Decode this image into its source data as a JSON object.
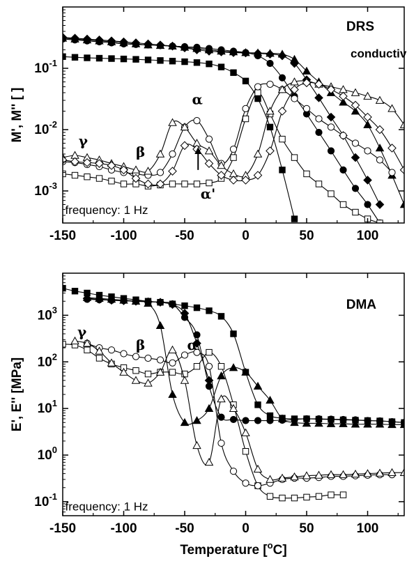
{
  "chart_data": [
    {
      "type": "line",
      "title": "DRS",
      "xlabel": "",
      "ylabel": "M', M'' [ ]",
      "xlim": [
        -150,
        130
      ],
      "ylim": [
        0.0003,
        1
      ],
      "yscale": "log",
      "x_ticks": [
        "-150",
        "-100",
        "-50",
        "0",
        "50",
        "100"
      ],
      "x_tick_values": [
        -150,
        -100,
        -50,
        0,
        50,
        100
      ],
      "y_ticks": [
        {
          "base": "10",
          "exp": "-3",
          "value": 0.001
        },
        {
          "base": "10",
          "exp": "-2",
          "value": 0.01
        },
        {
          "base": "10",
          "exp": "-1",
          "value": 0.1
        }
      ],
      "annotations": [
        {
          "text": "frequency: 1 Hz",
          "x": -148,
          "y": 0.00042
        },
        {
          "text": "conductivity",
          "x": 86,
          "y": 0.15
        },
        {
          "text": "γ",
          "x": -137,
          "y": 0.0055
        },
        {
          "text": "β",
          "x": -90,
          "y": 0.0036
        },
        {
          "text": "α",
          "x": -44,
          "y": 0.026
        },
        {
          "text": "α'",
          "x": -37,
          "y": 0.00075
        }
      ],
      "arrow": {
        "from": [
          -39,
          0.0022
        ],
        "to": [
          -39,
          0.0052
        ]
      },
      "series": [
        {
          "marker": "filled-square",
          "x": [
            -150,
            -140,
            -130,
            -120,
            -110,
            -100,
            -90,
            -80,
            -70,
            -60,
            -50,
            -40,
            -30,
            -20,
            -10,
            0,
            10,
            20,
            30,
            40
          ],
          "y": [
            0.155,
            0.151,
            0.148,
            0.146,
            0.144,
            0.142,
            0.14,
            0.137,
            0.134,
            0.131,
            0.128,
            0.124,
            0.118,
            0.105,
            0.085,
            0.062,
            0.032,
            0.011,
            0.0022,
            0.00035
          ]
        },
        {
          "marker": "filled-circle",
          "x": [
            -150,
            -140,
            -130,
            -120,
            -110,
            -100,
            -90,
            -80,
            -70,
            -60,
            -50,
            -40,
            -30,
            -20,
            -10,
            0,
            10,
            20,
            30,
            40,
            50,
            60,
            70,
            80,
            90,
            100,
            110
          ],
          "y": [
            0.3,
            0.29,
            0.28,
            0.27,
            0.26,
            0.25,
            0.245,
            0.24,
            0.235,
            0.23,
            0.225,
            0.22,
            0.21,
            0.2,
            0.19,
            0.18,
            0.16,
            0.12,
            0.07,
            0.035,
            0.018,
            0.009,
            0.0045,
            0.0022,
            0.0011,
            0.0006,
            0.0003
          ]
        },
        {
          "marker": "filled-diamond",
          "x": [
            -150,
            -140,
            -130,
            -120,
            -110,
            -100,
            -90,
            -80,
            -70,
            -60,
            -50,
            -40,
            -30,
            -20,
            -10,
            0,
            10,
            20,
            30,
            40,
            50,
            60,
            70,
            80,
            90,
            100,
            110
          ],
          "y": [
            0.32,
            0.31,
            0.3,
            0.29,
            0.28,
            0.27,
            0.26,
            0.25,
            0.24,
            0.23,
            0.215,
            0.2,
            0.19,
            0.185,
            0.18,
            0.178,
            0.175,
            0.17,
            0.16,
            0.12,
            0.065,
            0.033,
            0.016,
            0.008,
            0.0035,
            0.0015,
            0.0006
          ]
        },
        {
          "marker": "filled-triangle",
          "x": [
            -150,
            -140,
            -130,
            -120,
            -110,
            -100,
            -90,
            -80,
            -70,
            -60,
            -50,
            -40,
            -30,
            -20,
            -10,
            0,
            10,
            20,
            30,
            40,
            50,
            60,
            70,
            80,
            90,
            100,
            110,
            120,
            130
          ],
          "y": [
            0.31,
            0.3,
            0.29,
            0.28,
            0.27,
            0.26,
            0.25,
            0.24,
            0.235,
            0.23,
            0.22,
            0.21,
            0.2,
            0.19,
            0.185,
            0.18,
            0.178,
            0.175,
            0.17,
            0.14,
            0.09,
            0.06,
            0.04,
            0.028,
            0.02,
            0.012,
            0.005,
            0.0018,
            0.0006
          ]
        },
        {
          "marker": "open-square",
          "x": [
            -150,
            -140,
            -130,
            -120,
            -110,
            -100,
            -90,
            -80,
            -70,
            -60,
            -50,
            -40,
            -30,
            -20,
            -10,
            0,
            10,
            20,
            30,
            40,
            50,
            60,
            70,
            80,
            90,
            100,
            110
          ],
          "y": [
            0.0019,
            0.0018,
            0.0017,
            0.0016,
            0.00145,
            0.0013,
            0.0013,
            0.0012,
            0.00125,
            0.0013,
            0.0013,
            0.0013,
            0.00135,
            0.0016,
            0.0035,
            0.015,
            0.04,
            0.018,
            0.007,
            0.0035,
            0.0019,
            0.0013,
            0.0009,
            0.0006,
            0.00045,
            0.00035,
            0.0003
          ]
        },
        {
          "marker": "open-circle",
          "x": [
            -150,
            -140,
            -130,
            -120,
            -110,
            -100,
            -90,
            -80,
            -70,
            -60,
            -50,
            -40,
            -30,
            -20,
            -10,
            0,
            10,
            20,
            30,
            40,
            50,
            60,
            70,
            80,
            90,
            100,
            110,
            120
          ],
          "y": [
            0.003,
            0.0029,
            0.0027,
            0.0025,
            0.0022,
            0.002,
            0.0019,
            0.0018,
            0.002,
            0.004,
            0.011,
            0.014,
            0.007,
            0.0028,
            0.0048,
            0.022,
            0.05,
            0.055,
            0.045,
            0.032,
            0.022,
            0.015,
            0.011,
            0.008,
            0.006,
            0.0045,
            0.0032,
            0.002
          ]
        },
        {
          "marker": "open-triangle",
          "x": [
            -150,
            -140,
            -130,
            -120,
            -110,
            -100,
            -90,
            -80,
            -70,
            -60,
            -50,
            -40,
            -30,
            -20,
            -10,
            0,
            10,
            20,
            30,
            40,
            50,
            60,
            70,
            80,
            90,
            100,
            110,
            120,
            130
          ],
          "y": [
            0.0035,
            0.0038,
            0.0035,
            0.0032,
            0.0028,
            0.0025,
            0.0022,
            0.0021,
            0.004,
            0.013,
            0.011,
            0.006,
            0.0045,
            0.0026,
            0.0019,
            0.0018,
            0.004,
            0.02,
            0.045,
            0.06,
            0.062,
            0.055,
            0.05,
            0.045,
            0.04,
            0.035,
            0.03,
            0.022,
            0.012
          ]
        },
        {
          "marker": "open-diamond",
          "x": [
            -150,
            -140,
            -130,
            -120,
            -110,
            -100,
            -90,
            -80,
            -70,
            -60,
            -50,
            -40,
            -30,
            -20,
            -10,
            0,
            10,
            20,
            30,
            40,
            50,
            60,
            70,
            80,
            90,
            100,
            110,
            120,
            130
          ],
          "y": [
            0.0032,
            0.003,
            0.0029,
            0.0028,
            0.0026,
            0.0022,
            0.0016,
            0.0013,
            0.0013,
            0.0021,
            0.0055,
            0.0048,
            0.0028,
            0.0018,
            0.0015,
            0.0015,
            0.0018,
            0.0045,
            0.02,
            0.045,
            0.058,
            0.055,
            0.045,
            0.035,
            0.025,
            0.016,
            0.01,
            0.005,
            0.0022
          ]
        }
      ]
    },
    {
      "type": "line",
      "title": "DMA",
      "xlabel": "Temperature [°C]",
      "xlabel_parts": {
        "prefix": "Temperature [",
        "sup": "o",
        "suffix": "C]"
      },
      "ylabel": "E', E'' [MPa]",
      "xlim": [
        -150,
        130
      ],
      "ylim": [
        0.05,
        8000
      ],
      "yscale": "log",
      "x_ticks": [
        "-150",
        "-100",
        "-50",
        "0",
        "50",
        "100"
      ],
      "x_tick_values": [
        -150,
        -100,
        -50,
        0,
        50,
        100
      ],
      "y_ticks": [
        {
          "base": "10",
          "exp": "-1",
          "value": 0.1
        },
        {
          "base": "10",
          "exp": "0",
          "value": 1
        },
        {
          "base": "10",
          "exp": "1",
          "value": 10
        },
        {
          "base": "10",
          "exp": "2",
          "value": 100
        },
        {
          "base": "10",
          "exp": "3",
          "value": 1000
        }
      ],
      "annotations": [
        {
          "text": "frequency: 1 Hz",
          "x": -148,
          "y": 0.065
        },
        {
          "text": "γ",
          "x": -138,
          "y": 350
        },
        {
          "text": "β",
          "x": -90,
          "y": 180
        },
        {
          "text": "α",
          "x": -48,
          "y": 180
        }
      ],
      "series": [
        {
          "marker": "filled-square",
          "x": [
            -150,
            -140,
            -130,
            -120,
            -110,
            -100,
            -90,
            -80,
            -70,
            -60,
            -50,
            -40,
            -30,
            -20,
            -10,
            0,
            10,
            20,
            30,
            40,
            50,
            60,
            70,
            80,
            90,
            100,
            110,
            120,
            130
          ],
          "y": [
            3800,
            3300,
            3000,
            2700,
            2500,
            2300,
            2150,
            2000,
            1900,
            1750,
            1600,
            1450,
            1250,
            950,
            400,
            60,
            12,
            7,
            6.2,
            6,
            6,
            5.9,
            5.8,
            5.7,
            5.6,
            5.5,
            5.4,
            5.2,
            5
          ]
        },
        {
          "marker": "filled-circle",
          "x": [
            -130,
            -120,
            -110,
            -100,
            -90,
            -80,
            -70,
            -60,
            -50,
            -40,
            -30,
            -20,
            -10,
            0,
            10,
            20,
            30,
            40,
            50,
            60,
            70,
            80,
            90,
            100,
            110,
            120,
            130
          ],
          "y": [
            2200,
            2150,
            2100,
            2050,
            2000,
            1950,
            1900,
            1750,
            900,
            380,
            30,
            6.5,
            5.8,
            5.5,
            5.5,
            5.5,
            5.6,
            5.8,
            6,
            6,
            5.9,
            5.8,
            5.7,
            5.5,
            5.4,
            5.2,
            5
          ]
        },
        {
          "marker": "filled-diamond",
          "x": [
            -130,
            -120,
            -110,
            -100,
            -90,
            -80,
            -70,
            -60,
            -50,
            -40,
            -30
          ],
          "y": [
            2300,
            2200,
            2100,
            2050,
            2000,
            1950,
            1900,
            1700,
            1100,
            250,
            40
          ]
        },
        {
          "marker": "filled-triangle",
          "x": [
            -130,
            -120,
            -110,
            -100,
            -90,
            -80,
            -70,
            -60,
            -50,
            -40,
            -30,
            -20,
            -10,
            0,
            10,
            20,
            30,
            40,
            50,
            60,
            70,
            80,
            90,
            100,
            110,
            120,
            130
          ],
          "y": [
            2400,
            2300,
            2200,
            2100,
            2000,
            1800,
            600,
            20,
            5,
            5.5,
            10,
            50,
            75,
            60,
            30,
            15,
            6,
            5,
            4.8,
            4.8,
            4.7,
            4.7,
            4.6,
            4.6,
            4.6,
            4.5,
            4.5
          ]
        },
        {
          "marker": "open-square",
          "x": [
            -150,
            -140,
            -130,
            -120,
            -110,
            -100,
            -90,
            -80,
            -70,
            -60,
            -50,
            -40,
            -30,
            -20,
            -10,
            0,
            10,
            20,
            30,
            40,
            50,
            60,
            70,
            80
          ],
          "y": [
            240,
            230,
            180,
            120,
            90,
            75,
            65,
            55,
            60,
            60,
            55,
            80,
            160,
            80,
            12,
            1.2,
            0.22,
            0.13,
            0.12,
            0.12,
            0.125,
            0.13,
            0.14,
            0.14
          ]
        },
        {
          "marker": "open-circle",
          "x": [
            -130,
            -120,
            -110,
            -100,
            -90,
            -80,
            -70,
            -60,
            -50,
            -40,
            -30,
            -20,
            -10,
            0,
            10,
            20,
            30,
            40,
            50,
            60,
            70,
            80,
            90,
            100,
            110,
            120
          ],
          "y": [
            250,
            200,
            180,
            150,
            130,
            120,
            110,
            95,
            140,
            160,
            80,
            1.8,
            0.45,
            0.25,
            0.22,
            0.25,
            0.3,
            0.32,
            0.32,
            0.33,
            0.35,
            0.35,
            0.36,
            0.37,
            0.38,
            0.38
          ]
        },
        {
          "marker": "open-triangle",
          "x": [
            -140,
            -130,
            -120,
            -110,
            -100,
            -90,
            -80,
            -70,
            -60,
            -50,
            -40,
            -30,
            -20,
            -10,
            0,
            10,
            20,
            30,
            40,
            50,
            60,
            70,
            80,
            90,
            100,
            110,
            120,
            130
          ],
          "y": [
            280,
            250,
            170,
            95,
            60,
            40,
            35,
            60,
            180,
            40,
            1.6,
            0.7,
            16,
            10,
            3,
            0.5,
            0.3,
            0.32,
            0.34,
            0.36,
            0.37,
            0.38,
            0.38,
            0.39,
            0.4,
            0.41,
            0.42,
            0.42
          ]
        }
      ]
    }
  ]
}
